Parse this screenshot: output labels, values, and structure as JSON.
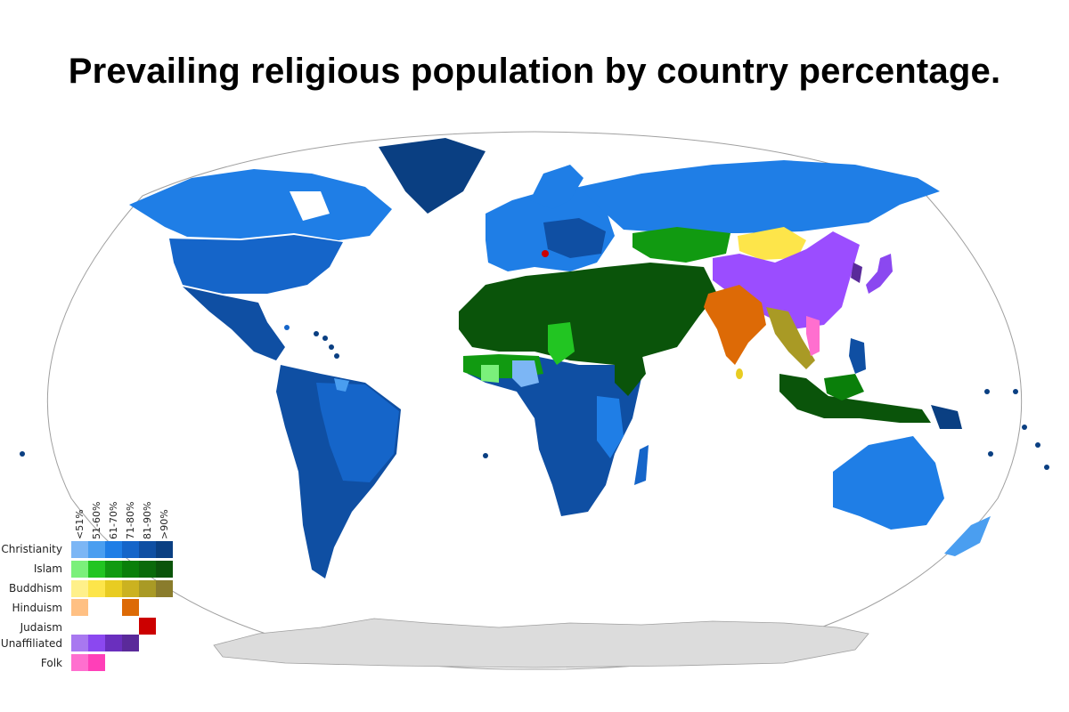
{
  "title": "Prevailing religious population by country percentage.",
  "legend": {
    "columns": [
      "<51%",
      "51-60%",
      "61-70%",
      "71-80%",
      "81-90%",
      ">90%"
    ],
    "rows": [
      {
        "name": "Christianity",
        "colors": [
          "#7cb6f5",
          "#4a9ef0",
          "#1f7ee6",
          "#1565c9",
          "#0f4fa3",
          "#0a3f82"
        ]
      },
      {
        "name": "Islam",
        "colors": [
          "#7bf07b",
          "#22c522",
          "#119a11",
          "#0a7f0a",
          "#0a6a0a",
          "#0a540a"
        ]
      },
      {
        "name": "Buddhism",
        "colors": [
          "#fff08a",
          "#fde54a",
          "#e8cc22",
          "#cbb220",
          "#a99a25",
          "#8a7c2c"
        ]
      },
      {
        "name": "Hinduism",
        "colors": [
          "#ffc083",
          null,
          null,
          "#dd6a06",
          null,
          null
        ]
      },
      {
        "name": "Judaism",
        "colors": [
          null,
          null,
          null,
          null,
          "#cc0000",
          null
        ]
      },
      {
        "name": "Unaffiliated",
        "colors": [
          "#a878f0",
          "#8b48f0",
          "#6a2fbe",
          "#5a2a9a",
          null,
          null
        ]
      },
      {
        "name": "Folk",
        "colors": [
          "#ff6fcf",
          "#ff3fb8",
          null,
          null,
          null,
          null
        ]
      }
    ]
  },
  "map": {
    "colors": {
      "ocean": "#ffffff",
      "outline": "#a0a0a0",
      "antarctica": "#dcdcdc",
      "christianity_dark": "#0f4fa3",
      "christianity_mid": "#1565c9",
      "christianity_light": "#1f7ee6",
      "islam_dark": "#0a540a",
      "islam_mid": "#119a11",
      "china": "#9b4dff",
      "mongolia": "#fde54a",
      "india": "#dd6a06",
      "se_asia": "#a99a25"
    }
  }
}
